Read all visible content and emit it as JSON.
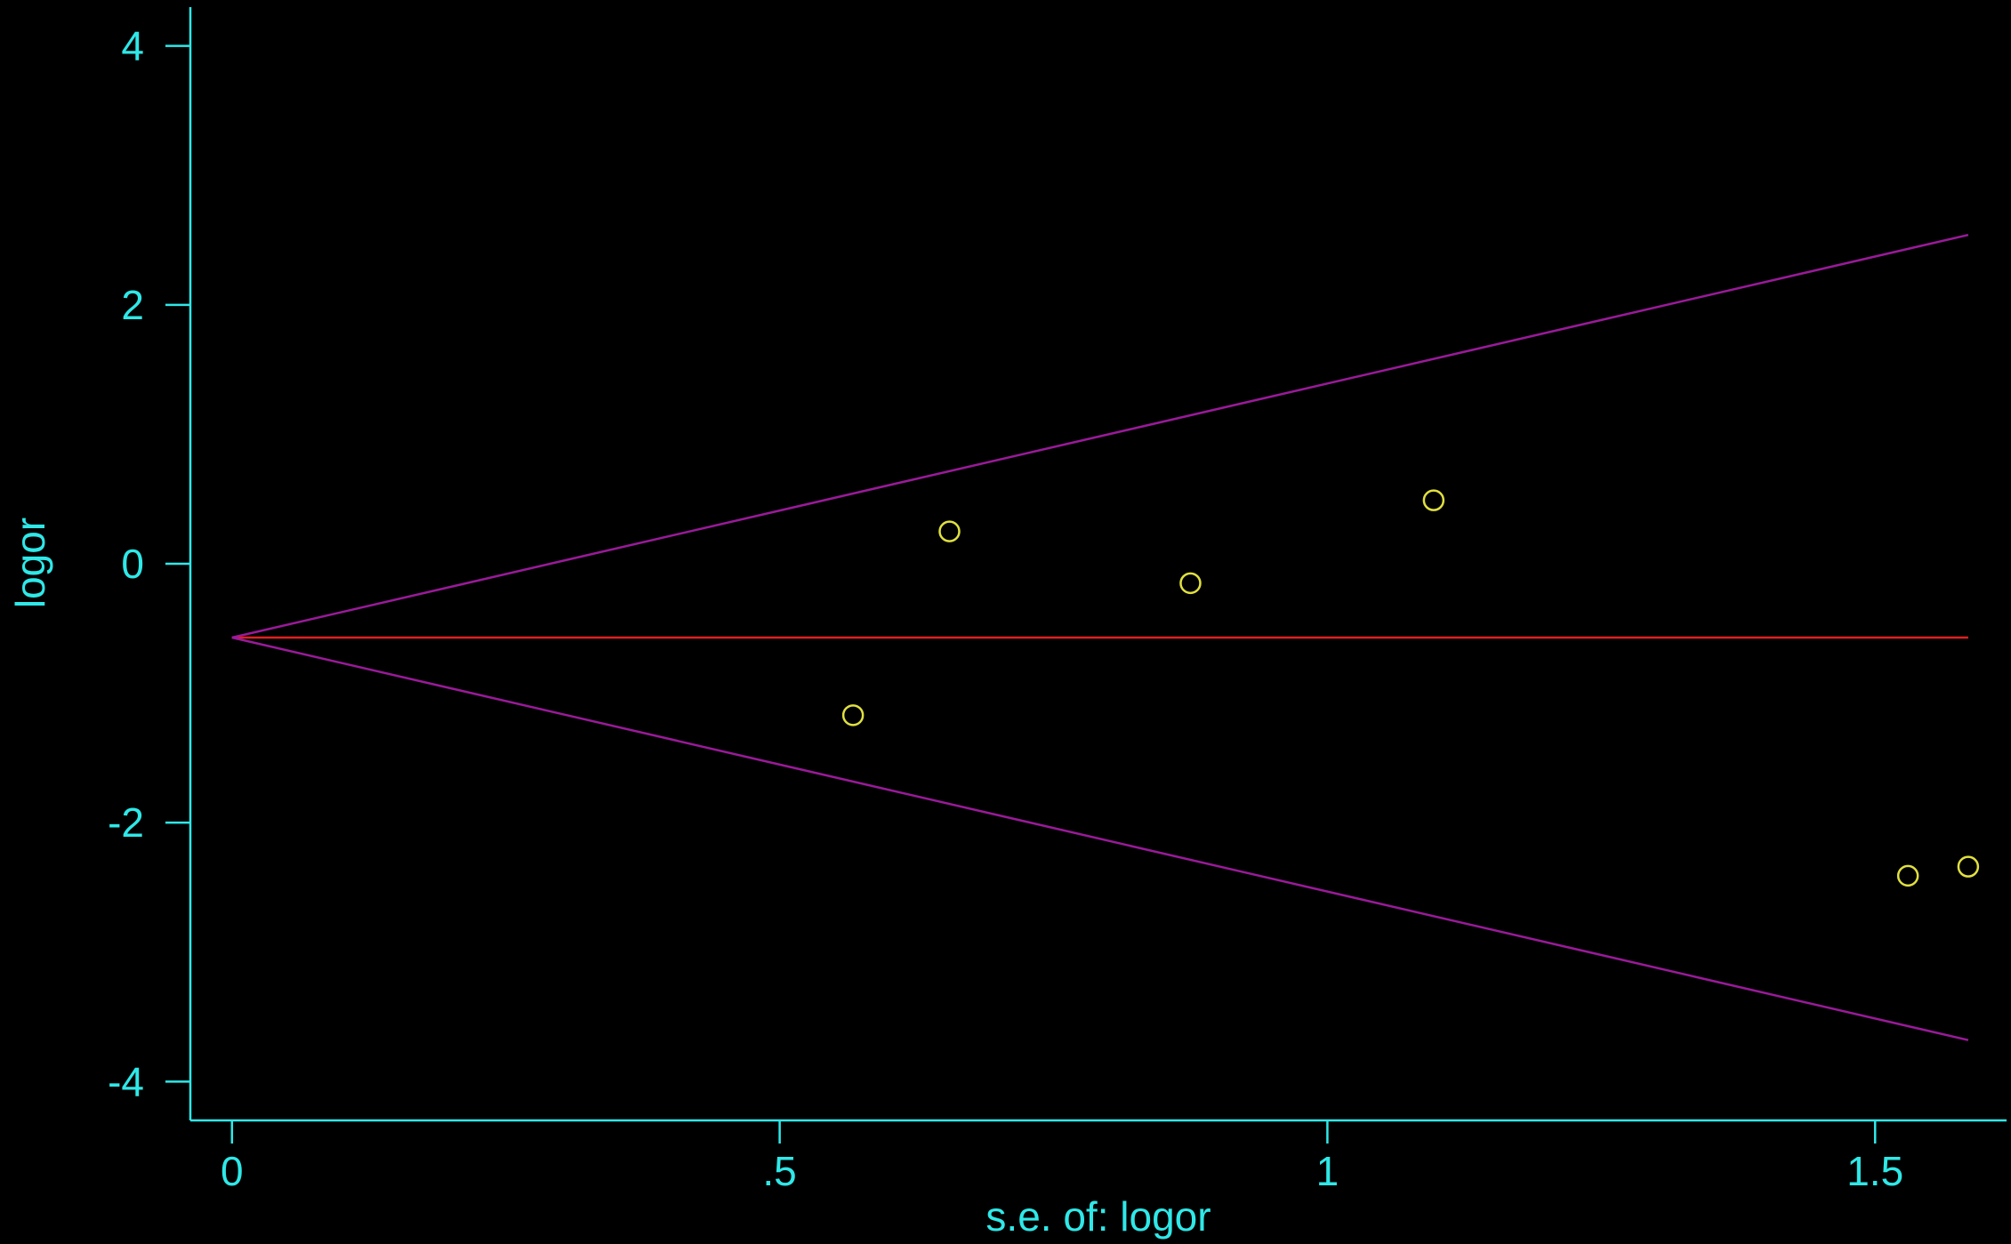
{
  "chart_data": {
    "type": "scatter",
    "title": "",
    "xlabel": "s.e. of: logor",
    "ylabel": "logor",
    "xlim": [
      -0.038,
      1.62
    ],
    "ylim": [
      -4.3,
      4.3
    ],
    "x_ticks": [
      0,
      0.5,
      1,
      1.5
    ],
    "x_tick_labels": [
      "0",
      ".5",
      "1",
      "1.5"
    ],
    "y_ticks": [
      4,
      2,
      0,
      -2,
      -4
    ],
    "y_tick_labels": [
      "4",
      "2",
      "0",
      "-2",
      "-4"
    ],
    "grid": false,
    "series": [
      {
        "type": "scatter",
        "color": "#e0e040",
        "marker": "hollow-circle",
        "points": [
          {
            "x": 0.567,
            "y": -1.17
          },
          {
            "x": 0.655,
            "y": 0.25
          },
          {
            "x": 0.875,
            "y": -0.15
          },
          {
            "x": 1.097,
            "y": 0.49
          },
          {
            "x": 1.53,
            "y": -2.41
          },
          {
            "x": 1.585,
            "y": -2.34
          }
        ]
      },
      {
        "type": "line",
        "color": "#e02020",
        "points": [
          {
            "x": 0,
            "y": -0.57
          },
          {
            "x": 1.585,
            "y": -0.57
          }
        ]
      },
      {
        "type": "line",
        "color": "#9a1a9a",
        "points": [
          {
            "x": 0,
            "y": -0.57
          },
          {
            "x": 1.585,
            "y": 2.54
          }
        ]
      },
      {
        "type": "line",
        "color": "#9a1a9a",
        "points": [
          {
            "x": 0,
            "y": -0.57
          },
          {
            "x": 1.585,
            "y": -3.68
          }
        ]
      }
    ],
    "colors": {
      "background": "#000000",
      "axis": "#2fe8e8"
    }
  }
}
